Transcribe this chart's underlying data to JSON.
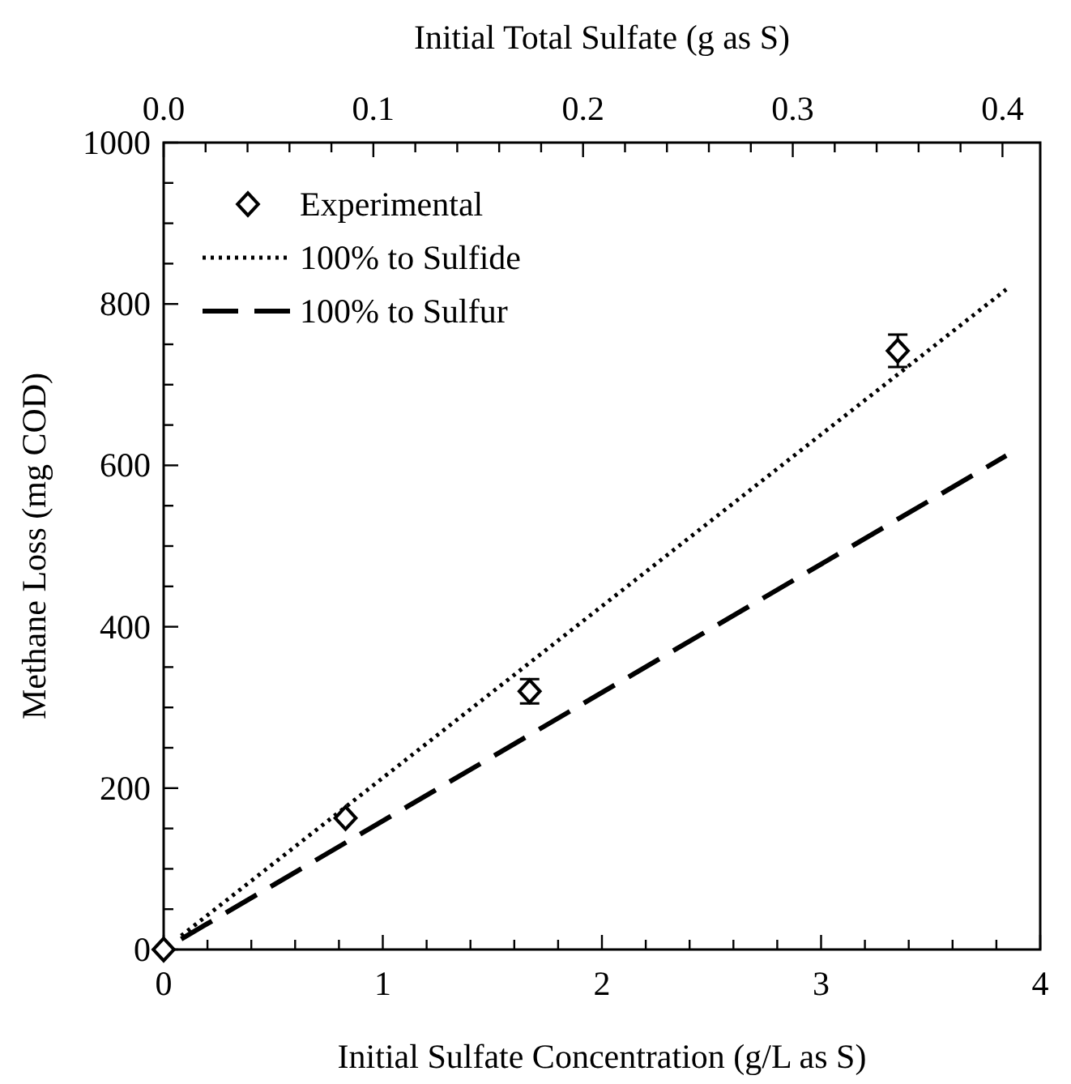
{
  "chart_data": {
    "type": "scatter",
    "xlabel": "Initial Sulfate Concentration (g/L as S)",
    "ylabel": "Methane Loss (mg COD)",
    "x2label": "Initial Total Sulfate (g as S)",
    "xlim": [
      0,
      4
    ],
    "xticks": [
      0,
      {
        "value": 0.2,
        "label": null
      },
      {
        "value": 0.4,
        "label": null
      },
      {
        "value": 0.6,
        "label": null
      },
      {
        "value": 0.8,
        "label": null
      },
      1,
      {
        "value": 1.2,
        "label": null
      },
      {
        "value": 1.4,
        "label": null
      },
      {
        "value": 1.6,
        "label": null
      },
      {
        "value": 1.8,
        "label": null
      },
      2,
      {
        "value": 2.2,
        "label": null
      },
      {
        "value": 2.4,
        "label": null
      },
      {
        "value": 2.6,
        "label": null
      },
      {
        "value": 2.8,
        "label": null
      },
      3,
      {
        "value": 3.2,
        "label": null
      },
      {
        "value": 3.4,
        "label": null
      },
      {
        "value": 3.6,
        "label": null
      },
      {
        "value": 3.8,
        "label": null
      },
      4
    ],
    "x2lim": [
      0,
      0.418
    ],
    "x2ticks": [
      {
        "value": 0,
        "label": "0.0"
      },
      {
        "value": 0.02,
        "label": null
      },
      {
        "value": 0.04,
        "label": null
      },
      {
        "value": 0.06,
        "label": null
      },
      {
        "value": 0.08,
        "label": null
      },
      0.1,
      {
        "value": 0.12,
        "label": null
      },
      {
        "value": 0.14,
        "label": null
      },
      {
        "value": 0.16,
        "label": null
      },
      {
        "value": 0.18,
        "label": null
      },
      0.2,
      {
        "value": 0.22,
        "label": null
      },
      {
        "value": 0.24,
        "label": null
      },
      {
        "value": 0.26,
        "label": null
      },
      {
        "value": 0.28,
        "label": null
      },
      0.3,
      {
        "value": 0.32,
        "label": null
      },
      {
        "value": 0.34,
        "label": null
      },
      {
        "value": 0.36,
        "label": null
      },
      {
        "value": 0.38,
        "label": null
      },
      0.4
    ],
    "ylim": [
      0,
      1000
    ],
    "yticks": [
      0,
      {
        "value": 50,
        "label": null
      },
      {
        "value": 100,
        "label": null
      },
      {
        "value": 150,
        "label": null
      },
      200,
      {
        "value": 250,
        "label": null
      },
      {
        "value": 300,
        "label": null
      },
      {
        "value": 350,
        "label": null
      },
      400,
      {
        "value": 450,
        "label": null
      },
      {
        "value": 500,
        "label": null
      },
      {
        "value": 550,
        "label": null
      },
      600,
      {
        "value": 650,
        "label": null
      },
      {
        "value": 700,
        "label": null
      },
      {
        "value": 750,
        "label": null
      },
      800,
      {
        "value": 850,
        "label": null
      },
      {
        "value": 900,
        "label": null
      },
      {
        "value": 950,
        "label": null
      },
      1000
    ],
    "grid": false,
    "legend": "top left",
    "series": [
      {
        "name": "Experimental",
        "marker": "diamond",
        "color": "#000000",
        "x": [
          0,
          0.83,
          1.67,
          3.35
        ],
        "values": [
          0,
          163,
          320,
          742
        ],
        "errors": [
          null,
          null,
          15,
          20
        ]
      },
      {
        "name": "100% to Sulfide",
        "type": "line",
        "line_style": "dotted",
        "color": "#000000",
        "x": [
          0.08,
          3.845
        ],
        "values": [
          17,
          818
        ]
      },
      {
        "name": "100% to Sulfur",
        "type": "line",
        "line_style": "dashed",
        "color": "#000000",
        "x": [
          0.08,
          3.845
        ],
        "values": [
          13,
          612
        ]
      }
    ]
  }
}
